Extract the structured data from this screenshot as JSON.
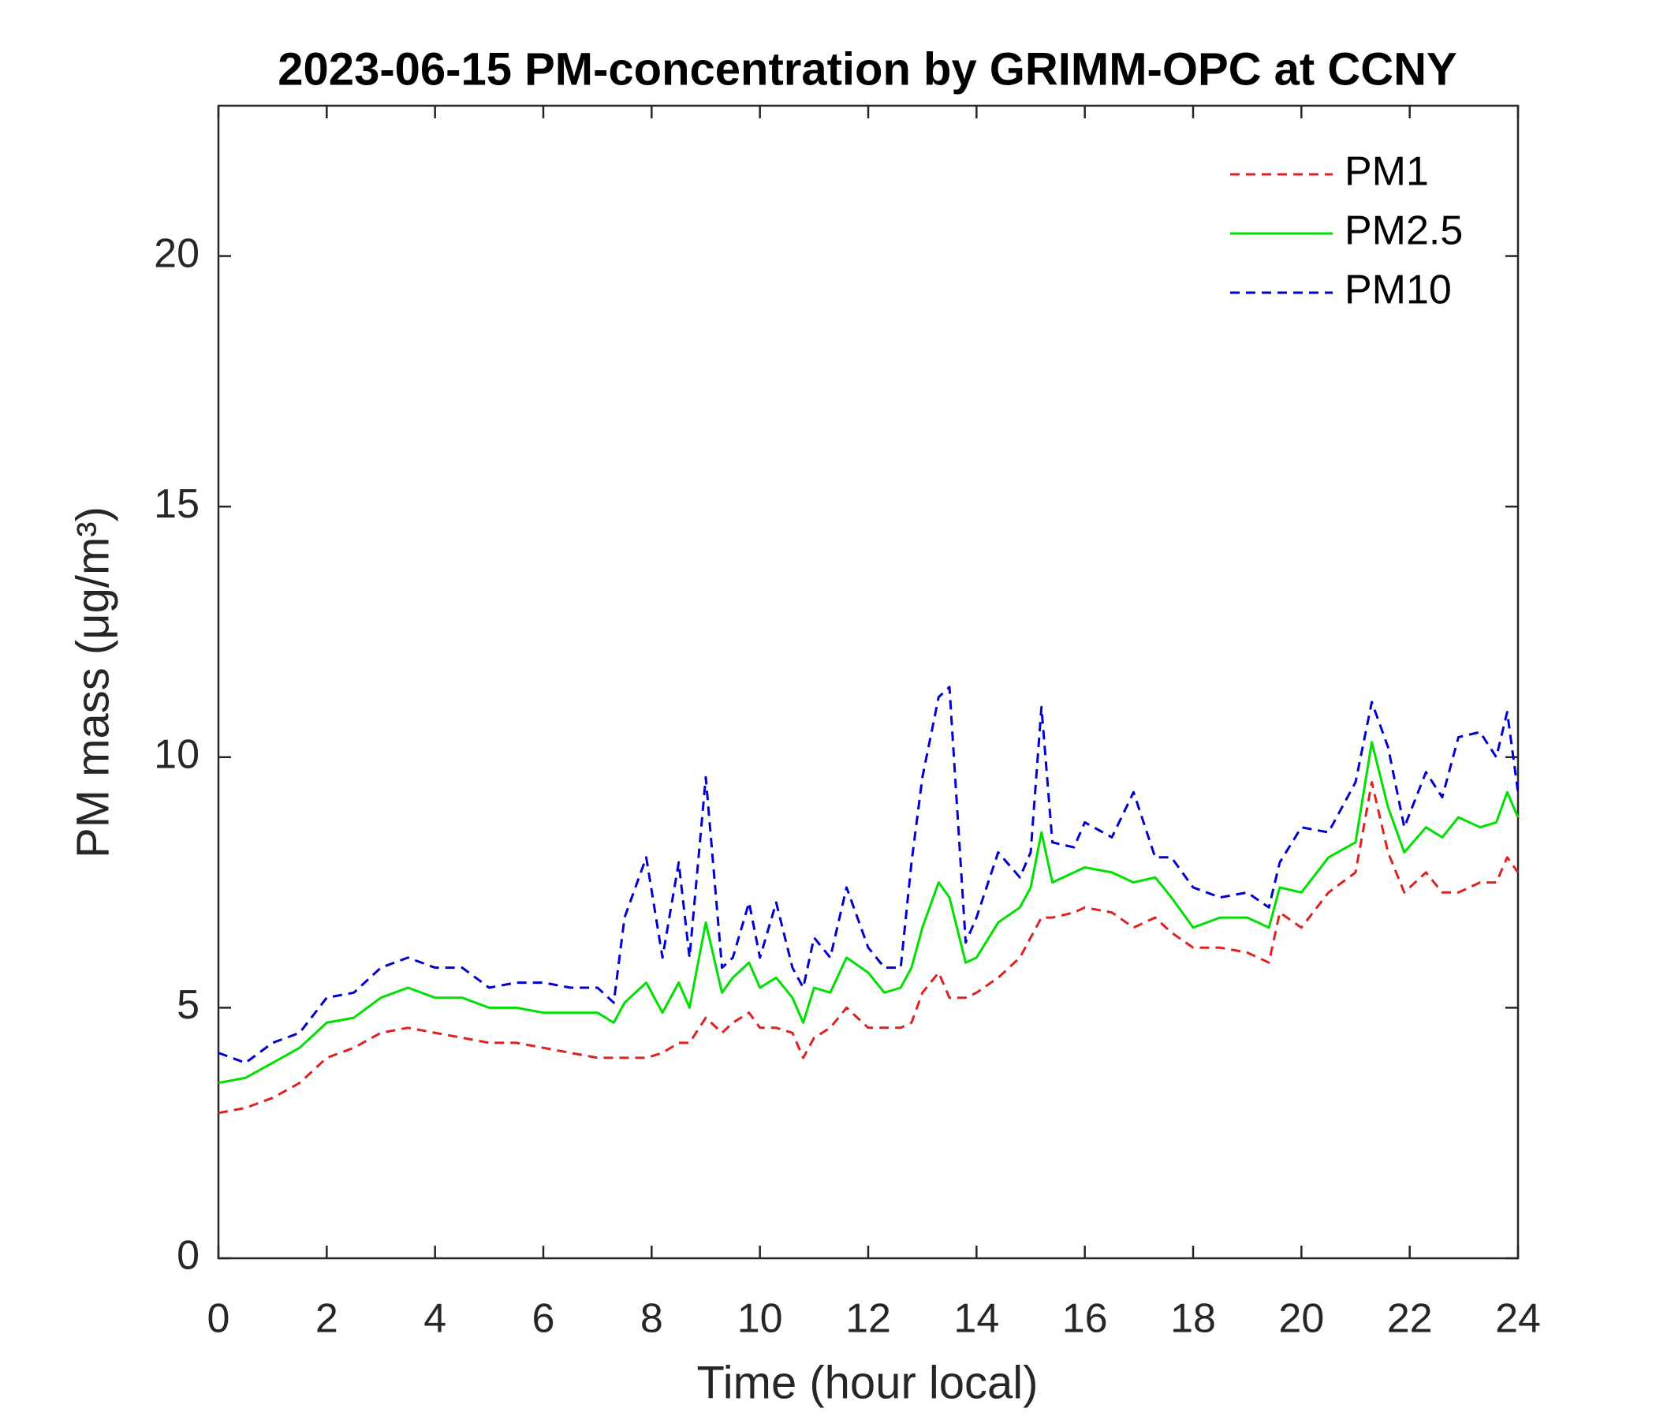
{
  "chart_data": {
    "type": "line",
    "title": "2023-06-15 PM-concentration by GRIMM-OPC at CCNY",
    "xlabel": "Time (hour local)",
    "ylabel": "PM mass (μg/m³)",
    "x": [
      0,
      0.5,
      1,
      1.5,
      2,
      2.5,
      3,
      3.5,
      4,
      4.5,
      5,
      5.5,
      6,
      6.5,
      7,
      7.3,
      7.5,
      7.9,
      8.2,
      8.5,
      8.7,
      9.0,
      9.3,
      9.5,
      9.8,
      10,
      10.3,
      10.6,
      10.8,
      11,
      11.3,
      11.6,
      12,
      12.3,
      12.6,
      12.8,
      13,
      13.3,
      13.5,
      13.8,
      14,
      14.4,
      14.8,
      15,
      15.2,
      15.4,
      15.8,
      16,
      16.5,
      16.9,
      17.3,
      17.6,
      18,
      18.5,
      19,
      19.4,
      19.6,
      20,
      20.5,
      21,
      21.3,
      21.6,
      21.9,
      22.3,
      22.6,
      22.9,
      23.3,
      23.6,
      23.8,
      24
    ],
    "series": [
      {
        "name": "PM1",
        "color": "#e02020",
        "linestyle": "dashed",
        "values": [
          2.9,
          3.0,
          3.2,
          3.5,
          4.0,
          4.2,
          4.5,
          4.6,
          4.5,
          4.4,
          4.3,
          4.3,
          4.2,
          4.1,
          4.0,
          4.0,
          4.0,
          4.0,
          4.1,
          4.3,
          4.3,
          4.8,
          4.5,
          4.7,
          4.9,
          4.6,
          4.6,
          4.5,
          4.0,
          4.4,
          4.6,
          5.0,
          4.6,
          4.6,
          4.6,
          4.7,
          5.3,
          5.7,
          5.2,
          5.2,
          5.3,
          5.6,
          6.0,
          6.4,
          6.8,
          6.8,
          6.9,
          7.0,
          6.9,
          6.6,
          6.8,
          6.5,
          6.2,
          6.2,
          6.1,
          5.9,
          6.9,
          6.6,
          7.3,
          7.7,
          9.5,
          8.1,
          7.3,
          7.7,
          7.3,
          7.3,
          7.5,
          7.5,
          8.0,
          7.7
        ]
      },
      {
        "name": "PM2.5",
        "color": "#00e000",
        "linestyle": "solid",
        "values": [
          3.5,
          3.6,
          3.9,
          4.2,
          4.7,
          4.8,
          5.2,
          5.4,
          5.2,
          5.2,
          5.0,
          5.0,
          4.9,
          4.9,
          4.9,
          4.7,
          5.1,
          5.5,
          4.9,
          5.5,
          5.0,
          6.7,
          5.3,
          5.6,
          5.9,
          5.4,
          5.6,
          5.2,
          4.7,
          5.4,
          5.3,
          6.0,
          5.7,
          5.3,
          5.4,
          5.8,
          6.6,
          7.5,
          7.2,
          5.9,
          6.0,
          6.7,
          7.0,
          7.4,
          8.5,
          7.5,
          7.7,
          7.8,
          7.7,
          7.5,
          7.6,
          7.2,
          6.6,
          6.8,
          6.8,
          6.6,
          7.4,
          7.3,
          8.0,
          8.3,
          10.3,
          9.0,
          8.1,
          8.6,
          8.4,
          8.8,
          8.6,
          8.7,
          9.3,
          8.8
        ]
      },
      {
        "name": "PM10",
        "color": "#0000d0",
        "linestyle": "dashed",
        "values": [
          4.1,
          3.9,
          4.3,
          4.5,
          5.2,
          5.3,
          5.8,
          6.0,
          5.8,
          5.8,
          5.4,
          5.5,
          5.5,
          5.4,
          5.4,
          5.1,
          6.8,
          8.0,
          6.0,
          7.9,
          6.0,
          9.6,
          5.8,
          6.0,
          7.1,
          6.0,
          7.1,
          5.8,
          5.4,
          6.4,
          6.0,
          7.4,
          6.2,
          5.8,
          5.8,
          7.9,
          9.6,
          11.2,
          11.4,
          6.3,
          6.8,
          8.1,
          7.6,
          8.1,
          11.0,
          8.3,
          8.2,
          8.7,
          8.4,
          9.3,
          8.0,
          8.0,
          7.4,
          7.2,
          7.3,
          7.0,
          7.9,
          8.6,
          8.5,
          9.5,
          11.1,
          10.2,
          8.6,
          9.7,
          9.2,
          10.4,
          10.5,
          10.0,
          10.9,
          9.3
        ]
      }
    ],
    "xlim": [
      0,
      24
    ],
    "xticks": [
      0,
      2,
      4,
      6,
      8,
      10,
      12,
      14,
      16,
      18,
      20,
      22,
      24
    ],
    "ylim": [
      0,
      23
    ],
    "yticks": [
      0,
      5,
      10,
      15,
      20
    ],
    "grid": false,
    "legend": "upper right"
  }
}
